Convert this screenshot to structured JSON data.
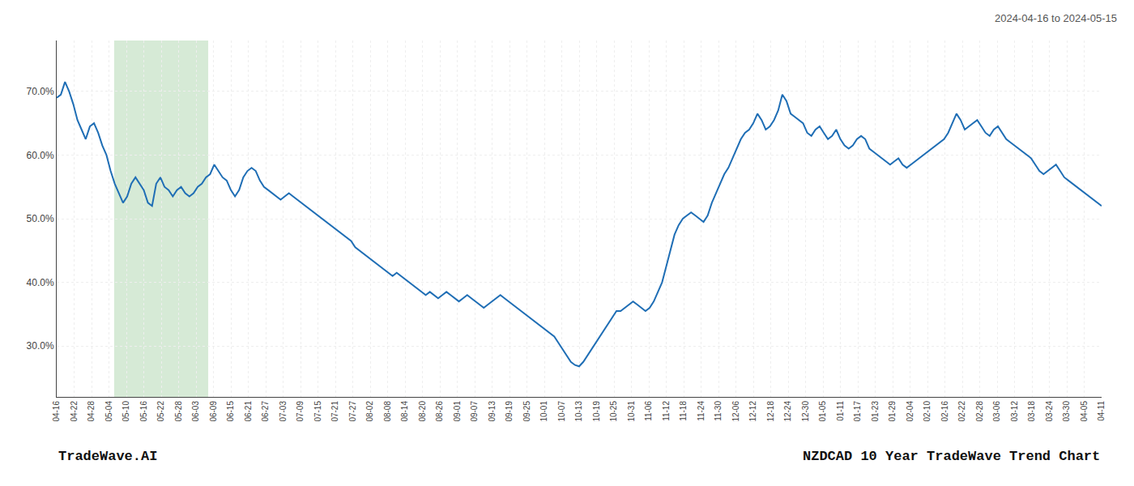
{
  "chart_data": {
    "type": "line",
    "title": "2024-04-16 to 2024-05-15",
    "annotations": [
      "TradeWave.AI",
      "NZDCAD 10 Year TradeWave Trend Chart"
    ],
    "color": "#1f6eb5",
    "grid": true,
    "highlight": {
      "from": 13.86,
      "to": 36.54,
      "color": "#d6ead6"
    },
    "xlim": [
      0,
      252
    ],
    "xticks": [
      {
        "value": 0,
        "label": "04-16"
      },
      {
        "value": 4.2,
        "label": "04-22"
      },
      {
        "value": 8.4,
        "label": "04-28"
      },
      {
        "value": 12.6,
        "label": "05-04"
      },
      {
        "value": 16.8,
        "label": "05-10"
      },
      {
        "value": 21,
        "label": "05-16"
      },
      {
        "value": 25.2,
        "label": "05-22"
      },
      {
        "value": 29.4,
        "label": "05-28"
      },
      {
        "value": 33.6,
        "label": "06-03"
      },
      {
        "value": 37.8,
        "label": "06-09"
      },
      {
        "value": 42,
        "label": "06-15"
      },
      {
        "value": 46.2,
        "label": "06-21"
      },
      {
        "value": 50.4,
        "label": "06-27"
      },
      {
        "value": 54.6,
        "label": "07-03"
      },
      {
        "value": 58.8,
        "label": "07-09"
      },
      {
        "value": 63,
        "label": "07-15"
      },
      {
        "value": 67.2,
        "label": "07-21"
      },
      {
        "value": 71.4,
        "label": "07-27"
      },
      {
        "value": 75.6,
        "label": "08-02"
      },
      {
        "value": 79.8,
        "label": "08-08"
      },
      {
        "value": 84,
        "label": "08-14"
      },
      {
        "value": 88.2,
        "label": "08-20"
      },
      {
        "value": 92.4,
        "label": "08-26"
      },
      {
        "value": 96.6,
        "label": "09-01"
      },
      {
        "value": 100.8,
        "label": "09-07"
      },
      {
        "value": 105,
        "label": "09-13"
      },
      {
        "value": 109.2,
        "label": "09-19"
      },
      {
        "value": 113.4,
        "label": "09-25"
      },
      {
        "value": 117.6,
        "label": "10-01"
      },
      {
        "value": 121.8,
        "label": "10-07"
      },
      {
        "value": 126,
        "label": "10-13"
      },
      {
        "value": 130.2,
        "label": "10-19"
      },
      {
        "value": 134.4,
        "label": "10-25"
      },
      {
        "value": 138.6,
        "label": "10-31"
      },
      {
        "value": 142.8,
        "label": "11-06"
      },
      {
        "value": 147,
        "label": "11-12"
      },
      {
        "value": 151.2,
        "label": "11-18"
      },
      {
        "value": 155.4,
        "label": "11-24"
      },
      {
        "value": 159.6,
        "label": "11-30"
      },
      {
        "value": 163.8,
        "label": "12-06"
      },
      {
        "value": 168,
        "label": "12-12"
      },
      {
        "value": 172.2,
        "label": "12-18"
      },
      {
        "value": 176.4,
        "label": "12-24"
      },
      {
        "value": 180.6,
        "label": "12-30"
      },
      {
        "value": 184.8,
        "label": "01-05"
      },
      {
        "value": 189,
        "label": "01-11"
      },
      {
        "value": 193.2,
        "label": "01-17"
      },
      {
        "value": 197.4,
        "label": "01-23"
      },
      {
        "value": 201.6,
        "label": "01-29"
      },
      {
        "value": 205.8,
        "label": "02-04"
      },
      {
        "value": 210,
        "label": "02-10"
      },
      {
        "value": 214.2,
        "label": "02-16"
      },
      {
        "value": 218.4,
        "label": "02-22"
      },
      {
        "value": 222.6,
        "label": "02-28"
      },
      {
        "value": 226.8,
        "label": "03-06"
      },
      {
        "value": 231,
        "label": "03-12"
      },
      {
        "value": 235.2,
        "label": "03-18"
      },
      {
        "value": 239.4,
        "label": "03-24"
      },
      {
        "value": 243.6,
        "label": "03-30"
      },
      {
        "value": 247.8,
        "label": "04-05"
      },
      {
        "value": 252,
        "label": "04-11"
      }
    ],
    "ylim": [
      22,
      78
    ],
    "yticks": [
      {
        "value": 30,
        "label": "30.0%"
      },
      {
        "value": 40,
        "label": "40.0%"
      },
      {
        "value": 50,
        "label": "50.0%"
      },
      {
        "value": 60,
        "label": "60.0%"
      },
      {
        "value": 70,
        "label": "70.0%"
      }
    ],
    "x": [
      0,
      1,
      2,
      3,
      4,
      5,
      6,
      7,
      8,
      9,
      10,
      11,
      12,
      13,
      14,
      15,
      16,
      17,
      18,
      19,
      20,
      21,
      22,
      23,
      24,
      25,
      26,
      27,
      28,
      29,
      30,
      31,
      32,
      33,
      34,
      35,
      36,
      37,
      38,
      39,
      40,
      41,
      42,
      43,
      44,
      45,
      46,
      47,
      48,
      49,
      50,
      51,
      52,
      53,
      54,
      55,
      56,
      57,
      58,
      59,
      60,
      61,
      62,
      63,
      64,
      65,
      66,
      67,
      68,
      69,
      70,
      71,
      72,
      73,
      74,
      75,
      76,
      77,
      78,
      79,
      80,
      81,
      82,
      83,
      84,
      85,
      86,
      87,
      88,
      89,
      90,
      91,
      92,
      93,
      94,
      95,
      96,
      97,
      98,
      99,
      100,
      101,
      102,
      103,
      104,
      105,
      106,
      107,
      108,
      109,
      110,
      111,
      112,
      113,
      114,
      115,
      116,
      117,
      118,
      119,
      120,
      121,
      122,
      123,
      124,
      125,
      126,
      127,
      128,
      129,
      130,
      131,
      132,
      133,
      134,
      135,
      136,
      137,
      138,
      139,
      140,
      141,
      142,
      143,
      144,
      145,
      146,
      147,
      148,
      149,
      150,
      151,
      152,
      153,
      154,
      155,
      156,
      157,
      158,
      159,
      160,
      161,
      162,
      163,
      164,
      165,
      166,
      167,
      168,
      169,
      170,
      171,
      172,
      173,
      174,
      175,
      176,
      177,
      178,
      179,
      180,
      181,
      182,
      183,
      184,
      185,
      186,
      187,
      188,
      189,
      190,
      191,
      192,
      193,
      194,
      195,
      196,
      197,
      198,
      199,
      200,
      201,
      202,
      203,
      204,
      205,
      206,
      207,
      208,
      209,
      210,
      211,
      212,
      213,
      214,
      215,
      216,
      217,
      218,
      219,
      220,
      221,
      222,
      223,
      224,
      225,
      226,
      227,
      228,
      229,
      230,
      231,
      232,
      233,
      234,
      235,
      236,
      237,
      238,
      239,
      240,
      241,
      242,
      243,
      244,
      245,
      246,
      247,
      248,
      249,
      250,
      251,
      252
    ],
    "values": [
      69.0,
      69.5,
      71.5,
      70.0,
      68.0,
      65.5,
      64.0,
      62.5,
      64.5,
      65.0,
      63.5,
      61.5,
      60.0,
      57.5,
      55.5,
      54.0,
      52.5,
      53.5,
      55.5,
      56.5,
      55.5,
      54.5,
      52.5,
      52.0,
      55.5,
      56.5,
      55.0,
      54.5,
      53.5,
      54.5,
      55.0,
      54.0,
      53.5,
      54.0,
      55.0,
      55.5,
      56.5,
      57.0,
      58.5,
      57.5,
      56.5,
      56.0,
      54.5,
      53.5,
      54.5,
      56.5,
      57.5,
      58.0,
      57.5,
      56.0,
      55.0,
      54.5,
      54.0,
      53.5,
      53.0,
      53.5,
      54.0,
      53.5,
      53.0,
      52.5,
      52.0,
      51.5,
      51.0,
      50.5,
      50.0,
      49.5,
      49.0,
      48.5,
      48.0,
      47.5,
      47.0,
      46.5,
      45.5,
      45.0,
      44.5,
      44.0,
      43.5,
      43.0,
      42.5,
      42.0,
      41.5,
      41.0,
      41.5,
      41.0,
      40.5,
      40.0,
      39.5,
      39.0,
      38.5,
      38.0,
      38.5,
      38.0,
      37.5,
      38.0,
      38.5,
      38.0,
      37.5,
      37.0,
      37.5,
      38.0,
      37.5,
      37.0,
      36.5,
      36.0,
      36.5,
      37.0,
      37.5,
      38.0,
      37.5,
      37.0,
      36.5,
      36.0,
      35.5,
      35.0,
      34.5,
      34.0,
      33.5,
      33.0,
      32.5,
      32.0,
      31.5,
      30.5,
      29.5,
      28.5,
      27.5,
      27.0,
      26.8,
      27.5,
      28.5,
      29.5,
      30.5,
      31.5,
      32.5,
      33.5,
      34.5,
      35.5,
      35.5,
      36.0,
      36.5,
      37.0,
      36.5,
      36.0,
      35.5,
      36.0,
      37.0,
      38.5,
      40.0,
      42.5,
      45.0,
      47.5,
      49.0,
      50.0,
      50.5,
      51.0,
      50.5,
      50.0,
      49.5,
      50.5,
      52.5,
      54.0,
      55.5,
      57.0,
      58.0,
      59.5,
      61.0,
      62.5,
      63.5,
      64.0,
      65.0,
      66.5,
      65.5,
      64.0,
      64.5,
      65.5,
      67.0,
      69.5,
      68.5,
      66.5,
      66.0,
      65.5,
      65.0,
      63.5,
      63.0,
      64.0,
      64.5,
      63.5,
      62.5,
      63.0,
      64.0,
      62.5,
      61.5,
      61.0,
      61.5,
      62.5,
      63.0,
      62.5,
      61.0,
      60.5,
      60.0,
      59.5,
      59.0,
      58.5,
      59.0,
      59.5,
      58.5,
      58.0,
      58.5,
      59.0,
      59.5,
      60.0,
      60.5,
      61.0,
      61.5,
      62.0,
      62.5,
      63.5,
      65.0,
      66.5,
      65.5,
      64.0,
      64.5,
      65.0,
      65.5,
      64.5,
      63.5,
      63.0,
      64.0,
      64.5,
      63.5,
      62.5,
      62.0,
      61.5,
      61.0,
      60.5,
      60.0,
      59.5,
      58.5,
      57.5,
      57.0,
      57.5,
      58.0,
      58.5,
      57.5,
      56.5,
      56.0,
      55.5,
      55.0,
      54.5,
      54.0,
      53.5,
      53.0,
      52.5,
      52.0
    ]
  }
}
